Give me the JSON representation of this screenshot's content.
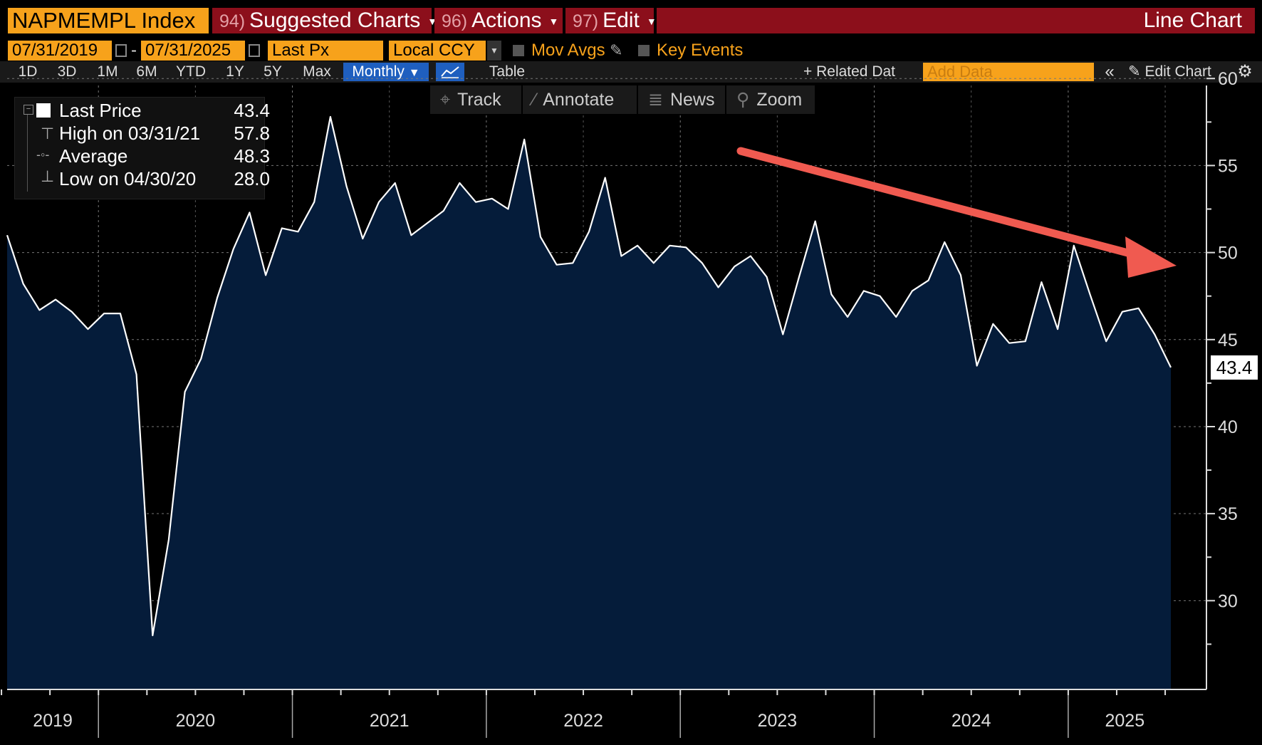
{
  "header": {
    "ticker": "NAPMEMPL Index",
    "menus": [
      {
        "num": "94)",
        "label": "Suggested Charts"
      },
      {
        "num": "96)",
        "label": "Actions"
      },
      {
        "num": "97)",
        "label": "Edit"
      }
    ],
    "chart_kind": "Line Chart"
  },
  "controls": {
    "start_date": "07/31/2019",
    "date_separator": "-",
    "end_date": "07/31/2025",
    "field": "Last Px",
    "currency": "Local CCY",
    "mov_avgs": "Mov Avgs",
    "key_events": "Key Events"
  },
  "periods": [
    "1D",
    "3D",
    "1M",
    "6M",
    "YTD",
    "1Y",
    "5Y",
    "Max"
  ],
  "frequency": "Monthly",
  "table_label": "Table",
  "related_data": "+ Related Dat",
  "add_data_placeholder": "Add Data",
  "edit_chart": "Edit Chart",
  "toolbar": {
    "track": "Track",
    "annotate": "Annotate",
    "news": "News",
    "zoom": "Zoom"
  },
  "legend": {
    "last_label": "Last Price",
    "last_value": "43.4",
    "high_label": "High on 03/31/21",
    "high_value": "57.8",
    "avg_label": "Average",
    "avg_value": "48.3",
    "low_label": "Low on 04/30/20",
    "low_value": "28.0"
  },
  "last_price_tag": "43.4",
  "colors": {
    "accent": "#f7a21b",
    "title_bar": "#8c0f1b",
    "area_fill": "#051c3a",
    "line": "#ffffff",
    "arrow": "#f05a50"
  },
  "chart_data": {
    "type": "area",
    "title": "",
    "xlabel": "",
    "ylabel": "",
    "ylim": [
      24.9,
      59.6
    ],
    "yticks": [
      30,
      35,
      40,
      45,
      50,
      55,
      60
    ],
    "x_tick_labels": [
      "2019",
      "2020",
      "2021",
      "2022",
      "2023",
      "2024",
      "2025"
    ],
    "grid": true,
    "annotation": "downward-trend arrow",
    "x": [
      "2019-07",
      "2019-08",
      "2019-09",
      "2019-10",
      "2019-11",
      "2019-12",
      "2020-01",
      "2020-02",
      "2020-03",
      "2020-04",
      "2020-05",
      "2020-06",
      "2020-07",
      "2020-08",
      "2020-09",
      "2020-10",
      "2020-11",
      "2020-12",
      "2021-01",
      "2021-02",
      "2021-03",
      "2021-04",
      "2021-05",
      "2021-06",
      "2021-07",
      "2021-08",
      "2021-09",
      "2021-10",
      "2021-11",
      "2021-12",
      "2022-01",
      "2022-02",
      "2022-03",
      "2022-04",
      "2022-05",
      "2022-06",
      "2022-07",
      "2022-08",
      "2022-09",
      "2022-10",
      "2022-11",
      "2022-12",
      "2023-01",
      "2023-02",
      "2023-03",
      "2023-04",
      "2023-05",
      "2023-06",
      "2023-07",
      "2023-08",
      "2023-09",
      "2023-10",
      "2023-11",
      "2023-12",
      "2024-01",
      "2024-02",
      "2024-03",
      "2024-04",
      "2024-05",
      "2024-06",
      "2024-07",
      "2024-08",
      "2024-09",
      "2024-10",
      "2024-11",
      "2024-12",
      "2025-01",
      "2025-02",
      "2025-03",
      "2025-04",
      "2025-05",
      "2025-06",
      "2025-07"
    ],
    "series": [
      {
        "values": [
          51.0,
          48.2,
          46.7,
          47.3,
          46.6,
          45.6,
          46.5,
          46.5,
          43.0,
          28.0,
          33.5,
          42.0,
          43.9,
          47.4,
          50.2,
          52.3,
          48.7,
          51.4,
          51.2,
          52.9,
          57.8,
          53.8,
          50.8,
          52.9,
          54.0,
          51.0,
          51.7,
          52.4,
          54.0,
          52.9,
          53.1,
          52.5,
          56.5,
          50.9,
          49.3,
          49.4,
          51.2,
          54.3,
          49.8,
          50.4,
          49.4,
          50.4,
          50.3,
          49.4,
          48.0,
          49.2,
          49.8,
          48.6,
          45.3,
          48.6,
          51.8,
          47.6,
          46.3,
          47.8,
          47.5,
          46.3,
          47.8,
          48.4,
          50.6,
          48.7,
          43.5,
          45.9,
          44.8,
          44.9,
          48.3,
          45.6,
          50.4,
          47.6,
          44.9,
          46.6,
          46.8,
          45.3,
          43.4
        ]
      }
    ]
  }
}
